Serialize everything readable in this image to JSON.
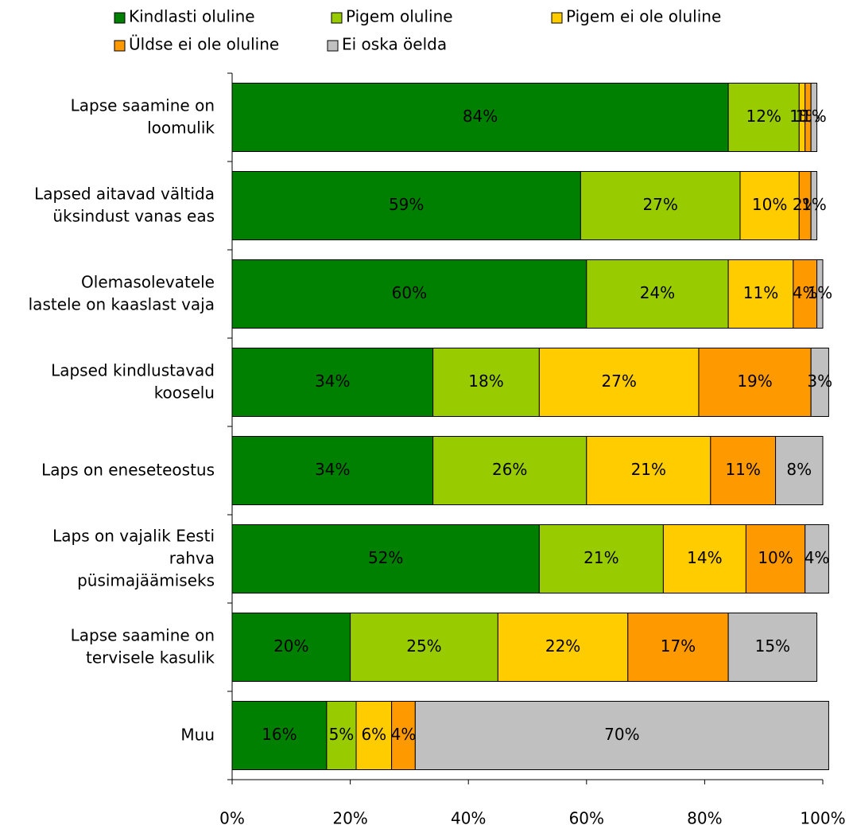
{
  "chart_data": {
    "type": "stacked_bar_horizontal",
    "categories": [
      "Lapse saamine on loomulik",
      "Lapsed aitavad vältida üksindust vanas eas",
      "Olemasolevatele lastele on kaaslast vaja",
      "Lapsed kindlustavad kooselu",
      "Laps on eneseteostus",
      "Laps on vajalik Eesti rahva püsimajäämiseks",
      "Lapse saamine on tervisele kasulik",
      "Muu"
    ],
    "series": [
      {
        "name": "Kindlasti oluline",
        "color": "#008000",
        "values": [
          84,
          59,
          60,
          34,
          34,
          52,
          20,
          16
        ],
        "value_labels": [
          "84%",
          "59%",
          "60%",
          "34%",
          "34%",
          "52%",
          "20%",
          "16%"
        ]
      },
      {
        "name": "Pigem oluline",
        "color": "#99cc00",
        "values": [
          12,
          27,
          24,
          18,
          26,
          21,
          25,
          5
        ],
        "value_labels": [
          "12%",
          "27%",
          "24%",
          "18%",
          "26%",
          "21%",
          "25%",
          "5%"
        ]
      },
      {
        "name": "Pigem ei ole oluline",
        "color": "#ffcc00",
        "values": [
          1,
          10,
          11,
          27,
          21,
          14,
          22,
          6
        ],
        "value_labels": [
          "1%",
          "10%",
          "11%",
          "27%",
          "21%",
          "14%",
          "22%",
          "6%"
        ]
      },
      {
        "name": "Üldse ei ole oluline",
        "color": "#ff9900",
        "values": [
          1,
          2,
          4,
          19,
          11,
          10,
          17,
          4
        ],
        "value_labels": [
          "1%",
          "2%",
          "4%",
          "19%",
          "11%",
          "10%",
          "17%",
          "4%"
        ]
      },
      {
        "name": "Ei oska öelda",
        "color": "#c0c0c0",
        "values": [
          1,
          1,
          1,
          3,
          8,
          4,
          15,
          70
        ],
        "value_labels": [
          "1%",
          "1%",
          "1%",
          "3%",
          "8%",
          "4%",
          "15%",
          "70%"
        ]
      }
    ],
    "xlim": [
      0,
      100
    ],
    "xticks": [
      {
        "value": 0,
        "label": "0%"
      },
      {
        "value": 20,
        "label": "20%"
      },
      {
        "value": 40,
        "label": "40%"
      },
      {
        "value": 60,
        "label": "60%"
      },
      {
        "value": 80,
        "label": "80%"
      },
      {
        "value": 100,
        "label": "100%"
      }
    ],
    "legend": "top"
  }
}
